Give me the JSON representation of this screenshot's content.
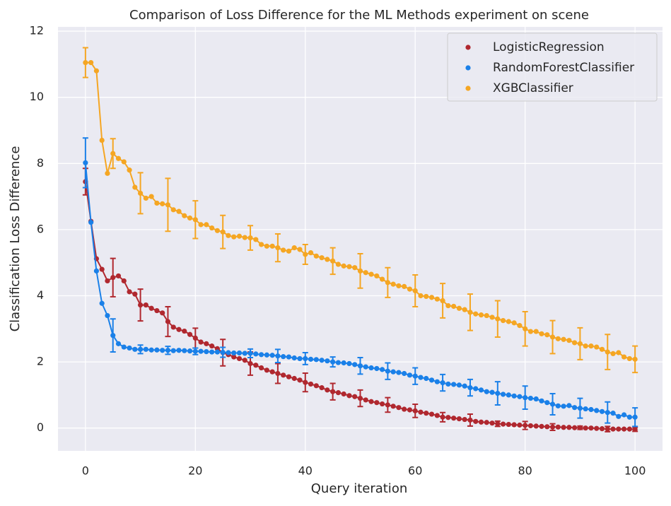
{
  "chart_data": {
    "type": "line",
    "title": "Comparison of Loss Difference for the ML Methods experiment on scene",
    "x_label": "Query iteration",
    "y_label": "Classification Loss Difference",
    "x": [
      0,
      1,
      2,
      3,
      4,
      5,
      6,
      7,
      8,
      9,
      10,
      11,
      12,
      13,
      14,
      15,
      16,
      17,
      18,
      19,
      20,
      21,
      22,
      23,
      24,
      25,
      26,
      27,
      28,
      29,
      30,
      31,
      32,
      33,
      34,
      35,
      36,
      37,
      38,
      39,
      40,
      41,
      42,
      43,
      44,
      45,
      46,
      47,
      48,
      49,
      50,
      51,
      52,
      53,
      54,
      55,
      56,
      57,
      58,
      59,
      60,
      61,
      62,
      63,
      64,
      65,
      66,
      67,
      68,
      69,
      70,
      71,
      72,
      73,
      74,
      75,
      76,
      77,
      78,
      79,
      80,
      81,
      82,
      83,
      84,
      85,
      86,
      87,
      88,
      89,
      90,
      91,
      92,
      93,
      94,
      95,
      96,
      97,
      98,
      99,
      100
    ],
    "error_x": [
      0,
      5,
      10,
      15,
      20,
      25,
      30,
      35,
      40,
      45,
      50,
      55,
      60,
      65,
      70,
      75,
      80,
      85,
      90,
      95,
      100
    ],
    "series": [
      {
        "name": "LogisticRegression",
        "color": "#b0282f",
        "values": [
          7.45,
          6.25,
          5.12,
          4.8,
          4.45,
          4.55,
          4.6,
          4.45,
          4.12,
          4.05,
          3.72,
          3.72,
          3.62,
          3.55,
          3.48,
          3.22,
          3.05,
          2.98,
          2.93,
          2.83,
          2.72,
          2.6,
          2.55,
          2.48,
          2.4,
          2.28,
          2.22,
          2.15,
          2.1,
          2.05,
          1.95,
          1.9,
          1.82,
          1.75,
          1.7,
          1.65,
          1.6,
          1.55,
          1.5,
          1.45,
          1.38,
          1.33,
          1.28,
          1.22,
          1.15,
          1.1,
          1.07,
          1.03,
          0.98,
          0.95,
          0.9,
          0.85,
          0.8,
          0.77,
          0.73,
          0.7,
          0.66,
          0.62,
          0.57,
          0.55,
          0.52,
          0.48,
          0.45,
          0.42,
          0.38,
          0.33,
          0.32,
          0.3,
          0.28,
          0.26,
          0.24,
          0.2,
          0.18,
          0.17,
          0.15,
          0.13,
          0.12,
          0.11,
          0.1,
          0.09,
          0.08,
          0.07,
          0.06,
          0.05,
          0.04,
          0.03,
          0.03,
          0.02,
          0.02,
          0.01,
          0.01,
          0.0,
          0.0,
          -0.01,
          -0.02,
          -0.03,
          -0.03,
          -0.03,
          -0.03,
          -0.03,
          -0.04
        ],
        "errors": [
          0.4,
          0.58,
          0.48,
          0.45,
          0.3,
          0.4,
          0.35,
          0.3,
          0.28,
          0.25,
          0.25,
          0.22,
          0.2,
          0.14,
          0.18,
          0.08,
          0.12,
          0.1,
          0.05,
          0.08,
          0.06
        ]
      },
      {
        "name": "RandomForestClassifier",
        "color": "#1a80e8",
        "values": [
          8.02,
          6.22,
          4.75,
          3.77,
          3.4,
          2.8,
          2.55,
          2.45,
          2.42,
          2.38,
          2.38,
          2.38,
          2.36,
          2.36,
          2.35,
          2.35,
          2.34,
          2.35,
          2.34,
          2.33,
          2.32,
          2.32,
          2.31,
          2.3,
          2.3,
          2.29,
          2.28,
          2.27,
          2.27,
          2.26,
          2.26,
          2.24,
          2.22,
          2.21,
          2.2,
          2.18,
          2.16,
          2.15,
          2.12,
          2.1,
          2.1,
          2.08,
          2.07,
          2.05,
          2.03,
          2.0,
          1.98,
          1.97,
          1.95,
          1.92,
          1.88,
          1.85,
          1.82,
          1.8,
          1.77,
          1.72,
          1.7,
          1.68,
          1.65,
          1.6,
          1.57,
          1.53,
          1.5,
          1.45,
          1.4,
          1.37,
          1.33,
          1.32,
          1.3,
          1.27,
          1.22,
          1.19,
          1.15,
          1.1,
          1.08,
          1.05,
          1.02,
          1.0,
          0.97,
          0.95,
          0.92,
          0.9,
          0.88,
          0.82,
          0.77,
          0.72,
          0.67,
          0.66,
          0.68,
          0.62,
          0.6,
          0.58,
          0.56,
          0.53,
          0.5,
          0.47,
          0.45,
          0.35,
          0.4,
          0.33,
          0.33
        ],
        "errors": [
          0.75,
          0.5,
          0.13,
          0.12,
          0.1,
          0.15,
          0.13,
          0.2,
          0.18,
          0.15,
          0.25,
          0.25,
          0.25,
          0.25,
          0.25,
          0.35,
          0.35,
          0.32,
          0.3,
          0.32,
          0.28
        ]
      },
      {
        "name": "XGBClassifier",
        "color": "#f5a623",
        "values": [
          11.05,
          11.05,
          10.8,
          8.7,
          7.7,
          8.3,
          8.15,
          8.05,
          7.8,
          7.28,
          7.1,
          6.95,
          7.0,
          6.8,
          6.78,
          6.75,
          6.6,
          6.55,
          6.42,
          6.35,
          6.3,
          6.15,
          6.15,
          6.05,
          5.97,
          5.93,
          5.82,
          5.78,
          5.8,
          5.76,
          5.75,
          5.7,
          5.55,
          5.5,
          5.5,
          5.45,
          5.38,
          5.35,
          5.45,
          5.4,
          5.25,
          5.3,
          5.2,
          5.15,
          5.1,
          5.05,
          4.95,
          4.9,
          4.88,
          4.85,
          4.75,
          4.7,
          4.65,
          4.6,
          4.5,
          4.4,
          4.35,
          4.3,
          4.28,
          4.2,
          4.15,
          4.0,
          3.98,
          3.95,
          3.9,
          3.85,
          3.7,
          3.68,
          3.62,
          3.58,
          3.5,
          3.45,
          3.42,
          3.4,
          3.35,
          3.3,
          3.25,
          3.22,
          3.18,
          3.1,
          3.0,
          2.92,
          2.92,
          2.85,
          2.82,
          2.75,
          2.7,
          2.68,
          2.65,
          2.58,
          2.55,
          2.48,
          2.48,
          2.45,
          2.38,
          2.3,
          2.25,
          2.28,
          2.15,
          2.1,
          2.08
        ],
        "errors": [
          0.45,
          0.45,
          0.62,
          0.8,
          0.57,
          0.5,
          0.37,
          0.42,
          0.3,
          0.4,
          0.52,
          0.45,
          0.48,
          0.52,
          0.55,
          0.55,
          0.52,
          0.5,
          0.48,
          0.53,
          0.4
        ]
      }
    ],
    "xlim": [
      -5,
      105
    ],
    "ylim": [
      -0.69,
      12.13
    ],
    "xticks": [
      0,
      20,
      40,
      60,
      80,
      100
    ],
    "yticks": [
      0,
      2,
      4,
      6,
      8,
      10,
      12
    ],
    "grid": true,
    "legend": "upper-right"
  }
}
